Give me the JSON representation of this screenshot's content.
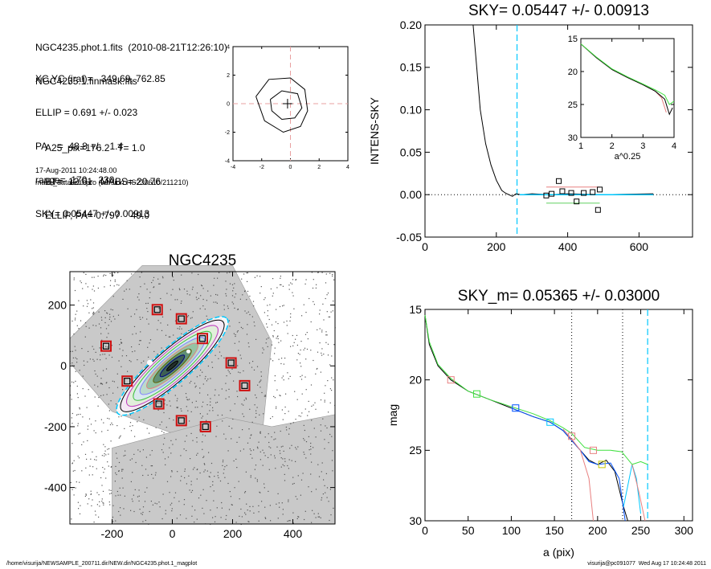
{
  "info": {
    "lines1": [
      "NGC4235.phot.1.fits  (2010-08-21T12:26:10)",
      "NGC4235.1.finmask.fits"
    ],
    "lines2": [
      "XC,YC (iraf)=   349.69, 762.85",
      "ELLIP = 0.691 +/- 0.023",
      "PA    =  48.8 +/-   1.4",
      "range=  170.-  230.",
      "SKY= 0.05447 +/- 0.00913"
    ],
    "lines3": [
      "A25_pix=176.2   T= 1.0",
      "BT=  12.61   MABS=-20.76",
      "ELLIP, PA= 0.797    49.0"
    ],
    "date": "17-Aug-2011 10:24:48.00",
    "program": "make_datalist0.pro (version HS230610/211210)"
  },
  "footer": {
    "left": "/home/visurija/NEWSAMPLE_200711.dir/NEW.dir/NGC4235.phot.1_magplot",
    "right": "visurija@pc091077  Wed Aug 17 10:24:48 2011"
  },
  "chart_data": [
    {
      "id": "center",
      "type": "line",
      "title": "",
      "xlim": [
        -4,
        4
      ],
      "ylim": [
        -4,
        4
      ],
      "xticks": [
        -4,
        -2,
        0,
        2,
        4
      ],
      "yticks": [
        -4,
        -2,
        0,
        2,
        4
      ],
      "series": [
        {
          "color": "#000000",
          "points": [
            [
              -2.4,
              0.5
            ],
            [
              -1.5,
              1.7
            ],
            [
              0,
              1.8
            ],
            [
              1.0,
              1.0
            ],
            [
              1.2,
              -0.5
            ],
            [
              0.7,
              -1.6
            ],
            [
              -0.5,
              -2.0
            ],
            [
              -1.8,
              -1.2
            ],
            [
              -2.4,
              0.5
            ]
          ]
        },
        {
          "color": "#000000",
          "points": [
            [
              -1.4,
              0.3
            ],
            [
              -0.6,
              0.9
            ],
            [
              0.5,
              0.7
            ],
            [
              0.8,
              -0.3
            ],
            [
              0.3,
              -1.0
            ],
            [
              -0.6,
              -1.1
            ],
            [
              -1.3,
              -0.5
            ],
            [
              -1.4,
              0.3
            ]
          ]
        }
      ],
      "crosshair": {
        "x": -0.2,
        "y": 0.0
      },
      "dashed": {
        "x": 0,
        "y": 0,
        "color": "#e8a0a0"
      }
    },
    {
      "id": "sky",
      "type": "line",
      "title": "SKY= 0.05447 +/- 0.00913",
      "xlabel": "",
      "ylabel": "INTENS-SKY",
      "xlim": [
        0,
        750
      ],
      "ylim": [
        -0.05,
        0.2
      ],
      "xticks": [
        0,
        200,
        400,
        600
      ],
      "yticks": [
        -0.05,
        0.0,
        0.05,
        0.1,
        0.15,
        0.2
      ],
      "ytick_labels": [
        "-0.05",
        "0.00",
        "0.05",
        "0.10",
        "0.15",
        "0.20"
      ],
      "series": [
        {
          "color": "#000000",
          "points": [
            [
              135,
              0.2
            ],
            [
              145,
              0.15
            ],
            [
              155,
              0.1
            ],
            [
              170,
              0.06
            ],
            [
              185,
              0.035
            ],
            [
              200,
              0.017
            ],
            [
              215,
              0.005
            ],
            [
              225,
              0.002
            ],
            [
              235,
              0.0
            ],
            [
              245,
              -0.002
            ],
            [
              255,
              0.001
            ],
            [
              270,
              0.0
            ],
            [
              300,
              0.001
            ],
            [
              350,
              0.0
            ],
            [
              400,
              0.001
            ],
            [
              500,
              0.0
            ],
            [
              640,
              0.001
            ]
          ]
        },
        {
          "color": "#00c8ff",
          "points": [
            [
              265,
              0.0
            ],
            [
              350,
              0.0
            ],
            [
              450,
              0.0
            ],
            [
              640,
              0.0
            ]
          ]
        }
      ],
      "boxes": [
        [
          340,
          -0.001
        ],
        [
          355,
          0.001
        ],
        [
          375,
          0.016
        ],
        [
          385,
          0.004
        ],
        [
          410,
          0.002
        ],
        [
          425,
          -0.008
        ],
        [
          445,
          0.002
        ],
        [
          470,
          0.003
        ],
        [
          485,
          -0.018
        ],
        [
          490,
          0.006
        ]
      ],
      "hlines": [
        {
          "y": 0.009,
          "x0": 340,
          "x1": 490,
          "color": "#e88080"
        },
        {
          "y": -0.01,
          "x0": 340,
          "x1": 490,
          "color": "#60d060"
        },
        {
          "y": 0.0,
          "x0": 340,
          "x1": 490,
          "color": "#000000"
        }
      ],
      "vline": {
        "x": 258,
        "color": "#00c8ff"
      },
      "zero_line": true
    },
    {
      "id": "inset",
      "type": "line",
      "title": "",
      "xlabel": "a^0.25",
      "ylabel": "",
      "xlim": [
        1,
        4
      ],
      "ylim": [
        15,
        30
      ],
      "xticks": [
        1,
        2,
        3,
        4
      ],
      "yticks": [
        15,
        20,
        25,
        30
      ],
      "series": [
        {
          "color": "#e88080",
          "points": [
            [
              1.0,
              15.8
            ],
            [
              1.5,
              17.9
            ],
            [
              2.0,
              19.7
            ],
            [
              2.5,
              20.9
            ],
            [
              3.0,
              22.0
            ],
            [
              3.4,
              23.0
            ],
            [
              3.6,
              24.0
            ],
            [
              3.75,
              26.2
            ]
          ]
        },
        {
          "color": "#000000",
          "points": [
            [
              1.0,
              15.8
            ],
            [
              1.5,
              17.9
            ],
            [
              2.0,
              19.7
            ],
            [
              2.5,
              20.9
            ],
            [
              3.0,
              22.0
            ],
            [
              3.4,
              23.0
            ],
            [
              3.7,
              24.2
            ],
            [
              3.85,
              26.5
            ],
            [
              3.95,
              25.5
            ]
          ]
        },
        {
          "color": "#40e040",
          "points": [
            [
              1.0,
              15.8
            ],
            [
              1.5,
              17.8
            ],
            [
              2.0,
              19.6
            ],
            [
              2.5,
              20.8
            ],
            [
              3.0,
              21.9
            ],
            [
              3.4,
              22.8
            ],
            [
              3.7,
              23.6
            ],
            [
              3.85,
              25.0
            ],
            [
              4.0,
              24.5
            ]
          ]
        }
      ]
    },
    {
      "id": "image",
      "type": "scatter",
      "title": "NGC4235",
      "xlim": [
        -340,
        540
      ],
      "ylim": [
        -520,
        310
      ],
      "xticks": [
        -200,
        0,
        200,
        400
      ],
      "yticks": [
        200,
        0,
        -200,
        -400
      ],
      "xtick_labels": [
        "-200",
        "0",
        "200",
        "400"
      ],
      "ytick_labels": [
        "200",
        "0",
        "-200",
        "-400"
      ],
      "ellipse": {
        "cx": 0,
        "cy": 0,
        "a": 240,
        "b": 58,
        "pa": 49
      },
      "ellipse_scales": [
        1.0,
        0.93,
        0.82,
        0.7,
        0.58,
        0.46,
        0.34,
        0.22,
        0.1
      ],
      "squares": [
        [
          -50,
          185
        ],
        [
          30,
          155
        ],
        [
          100,
          90
        ],
        [
          -220,
          65
        ],
        [
          195,
          10
        ],
        [
          240,
          -65
        ],
        [
          -150,
          -50
        ],
        [
          -45,
          -125
        ],
        [
          30,
          -180
        ],
        [
          110,
          -200
        ]
      ]
    },
    {
      "id": "mag",
      "type": "line",
      "title": "SKY_m=  0.05365 +/- 0.03000",
      "xlabel": "a (pix)",
      "ylabel": "mag",
      "xlim": [
        0,
        310
      ],
      "ylim": [
        15,
        30
      ],
      "xticks": [
        0,
        50,
        100,
        150,
        200,
        250,
        300
      ],
      "yticks": [
        15,
        20,
        25,
        30
      ],
      "series": [
        {
          "color": "#000000",
          "points": [
            [
              0,
              15.4
            ],
            [
              5,
              17.5
            ],
            [
              15,
              19.0
            ],
            [
              30,
              20.0
            ],
            [
              50,
              20.8
            ],
            [
              75,
              21.4
            ],
            [
              100,
              22.0
            ],
            [
              125,
              22.6
            ],
            [
              145,
              23.0
            ],
            [
              160,
              23.6
            ],
            [
              170,
              24.3
            ],
            [
              180,
              25.0
            ],
            [
              190,
              25.7
            ],
            [
              200,
              26.0
            ],
            [
              210,
              25.7
            ],
            [
              220,
              26.5
            ],
            [
              230,
              29.0
            ],
            [
              235,
              30.0
            ]
          ]
        },
        {
          "color": "#0050ff",
          "points": [
            [
              100,
              22.0
            ],
            [
              125,
              22.6
            ],
            [
              145,
              23.0
            ],
            [
              160,
              23.6
            ],
            [
              170,
              24.3
            ],
            [
              180,
              25.0
            ],
            [
              190,
              25.8
            ],
            [
              200,
              26.0
            ],
            [
              215,
              25.9
            ],
            [
              225,
              27.0
            ],
            [
              232,
              30.0
            ]
          ]
        },
        {
          "color": "#00c8ff",
          "points": [
            [
              230,
              29.0
            ],
            [
              240,
              26.0
            ],
            [
              245,
              27.0
            ],
            [
              250,
              29.5
            ]
          ]
        },
        {
          "color": "#40e040",
          "points": [
            [
              0,
              15.4
            ],
            [
              5,
              17.3
            ],
            [
              15,
              18.9
            ],
            [
              30,
              19.9
            ],
            [
              50,
              20.8
            ],
            [
              75,
              21.4
            ],
            [
              100,
              21.9
            ],
            [
              125,
              22.4
            ],
            [
              145,
              22.9
            ],
            [
              160,
              23.4
            ],
            [
              170,
              23.8
            ],
            [
              185,
              24.8
            ],
            [
              200,
              25.0
            ],
            [
              215,
              25.0
            ],
            [
              228,
              25.1
            ],
            [
              240,
              26.0
            ],
            [
              250,
              25.8
            ],
            [
              258,
              26.0
            ]
          ]
        },
        {
          "color": "#e88080",
          "points": [
            [
              160,
              23.5
            ],
            [
              170,
              24.2
            ],
            [
              180,
              25.0
            ],
            [
              190,
              27.0
            ],
            [
              195,
              30.0
            ]
          ]
        },
        {
          "color": "#e88080",
          "points": [
            [
              240,
              26.0
            ],
            [
              248,
              28.0
            ],
            [
              255,
              30.0
            ]
          ]
        }
      ],
      "markers": [
        [
          30,
          20.0,
          "#e88080"
        ],
        [
          60,
          21.0,
          "#40e040"
        ],
        [
          105,
          22.0,
          "#0050ff"
        ],
        [
          145,
          23.0,
          "#00c8ff"
        ],
        [
          170,
          24.0,
          "#e88080"
        ],
        [
          195,
          25.0,
          "#e88080"
        ],
        [
          205,
          26.0,
          "#c8c800"
        ]
      ],
      "vlines": [
        {
          "x": 170,
          "color": "#000000",
          "dotted": true
        },
        {
          "x": 229,
          "color": "#000000",
          "dotted": true
        },
        {
          "x": 258,
          "color": "#00c8ff",
          "dotted": false
        }
      ]
    }
  ]
}
